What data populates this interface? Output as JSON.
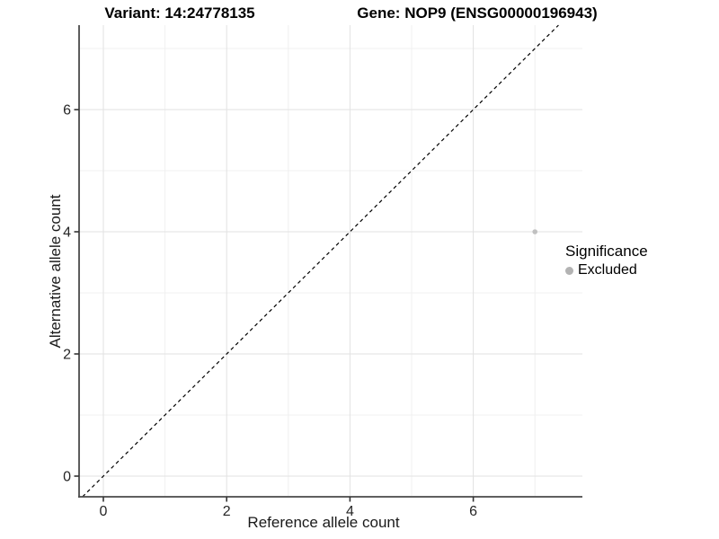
{
  "header": {
    "variant_title": "Variant: 14:24778135",
    "gene_title": "Gene: NOP9 (ENSG00000196943)"
  },
  "chart_data": {
    "type": "scatter",
    "title": "Variant: 14:24778135 — Gene: NOP9 (ENSG00000196943)",
    "xlabel": "Reference allele count",
    "ylabel": "Alternative allele count",
    "xlim": [
      -0.39,
      7.77
    ],
    "ylim": [
      -0.34,
      7.38
    ],
    "x_ticks": [
      0,
      2,
      4,
      6
    ],
    "y_ticks": [
      0,
      2,
      4,
      6
    ],
    "grid": {
      "major_at": [
        0,
        2,
        4,
        6
      ],
      "minor_at": [
        1,
        3,
        5,
        7
      ],
      "major_color": "#e2e2e2",
      "minor_color": "#f0f0f0"
    },
    "series": [
      {
        "name": "Excluded",
        "color": "#c0c0c0",
        "points": [
          [
            7,
            4
          ]
        ]
      }
    ],
    "reference_line": {
      "style": "dashed",
      "slope": 1,
      "intercept": 0,
      "color": "#000000"
    },
    "legend": {
      "title": "Significance",
      "position": "right",
      "entries": [
        {
          "label": "Excluded",
          "color": "#b3b3b3",
          "marker": "circle"
        }
      ]
    },
    "colors": {
      "axis_line": "#4a4a4a",
      "tick_mark": "#333333",
      "tick_label": "#262626"
    }
  }
}
